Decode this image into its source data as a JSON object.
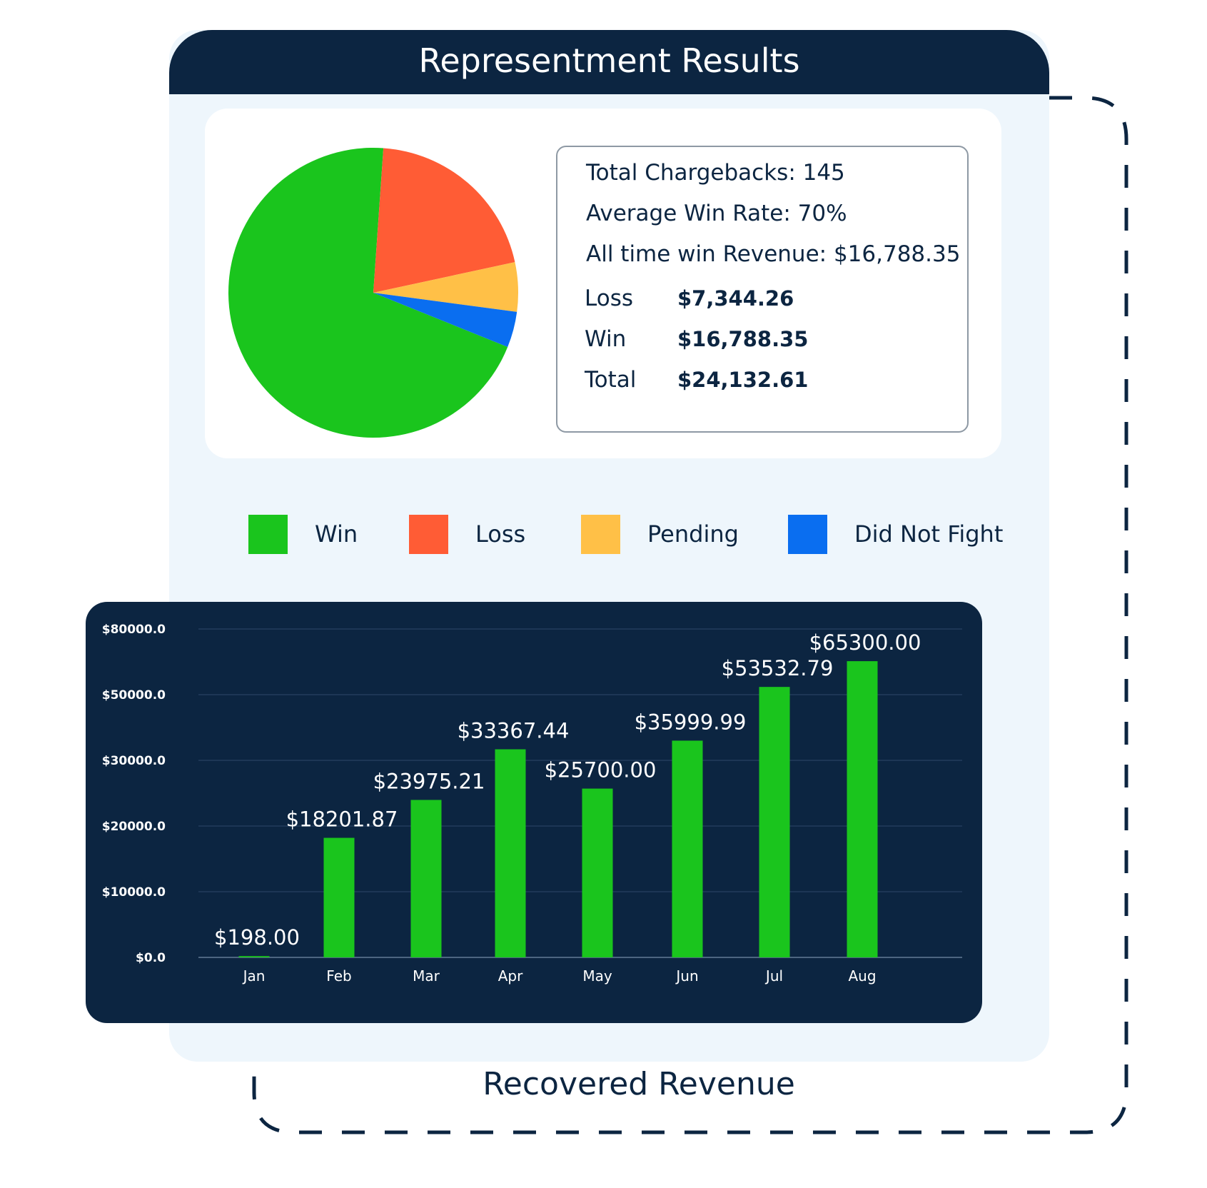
{
  "header": {
    "title": "Representment Results"
  },
  "stats": {
    "total_chargebacks": "Total Chargebacks: 145",
    "average_win_rate": "Average Win Rate: 70%",
    "all_time_win_revenue": "All time win Revenue: $16,788.35",
    "rows": [
      {
        "label": "Loss",
        "value": "$7,344.26"
      },
      {
        "label": "Win",
        "value": "$16,788.35"
      },
      {
        "label": "Total",
        "value": "$24,132.61"
      }
    ]
  },
  "legend": [
    {
      "label": "Win",
      "color": "#1ac51d"
    },
    {
      "label": "Loss",
      "color": "#ff5c35"
    },
    {
      "label": "Pending",
      "color": "#ffc047"
    },
    {
      "label": "Did Not Fight",
      "color": "#0a6ef0"
    }
  ],
  "footer": {
    "label": "Recovered Revenue"
  },
  "chart_data": [
    {
      "type": "pie",
      "title": "",
      "categories": [
        "Win",
        "Loss",
        "Pending",
        "Did Not Fight"
      ],
      "values": [
        70,
        20.5,
        5.5,
        4
      ],
      "colors": [
        "#1ac51d",
        "#ff5c35",
        "#ffc047",
        "#0a6ef0"
      ]
    },
    {
      "type": "bar",
      "title": "Recovered Revenue",
      "categories": [
        "Jan",
        "Feb",
        "Mar",
        "Apr",
        "May",
        "Jun",
        "Jul",
        "Aug"
      ],
      "values": [
        198.0,
        18201.87,
        23975.21,
        33367.44,
        25700.0,
        35999.99,
        53532.79,
        65300.0
      ],
      "value_labels": [
        "$198.00",
        "$18201.87",
        "$23975.21",
        "$33367.44",
        "$25700.00",
        "$35999.99",
        "$53532.79",
        "$65300.00"
      ],
      "ytick_labels": [
        "$0.0",
        "$10000.0",
        "$20000.0",
        "$30000.0",
        "$50000.0",
        "$80000.0"
      ],
      "ylim": [
        0,
        80000
      ],
      "color": "#1ac51d",
      "grid": true,
      "xlabel": "",
      "ylabel": ""
    }
  ]
}
